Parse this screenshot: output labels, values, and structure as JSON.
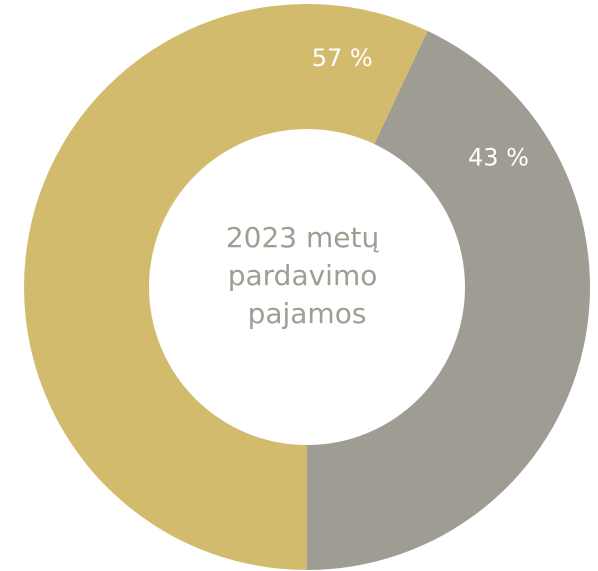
{
  "chart_data": {
    "type": "pie",
    "center_label": [
      "2023 metų",
      "pardavimo",
      "pajamos"
    ],
    "slices": [
      {
        "value": 43,
        "label": "43 %",
        "color": "#9f9c93"
      },
      {
        "value": 57,
        "label": "57 %",
        "color": "#d3bb6e"
      }
    ],
    "donut": true,
    "start": "top-right"
  }
}
